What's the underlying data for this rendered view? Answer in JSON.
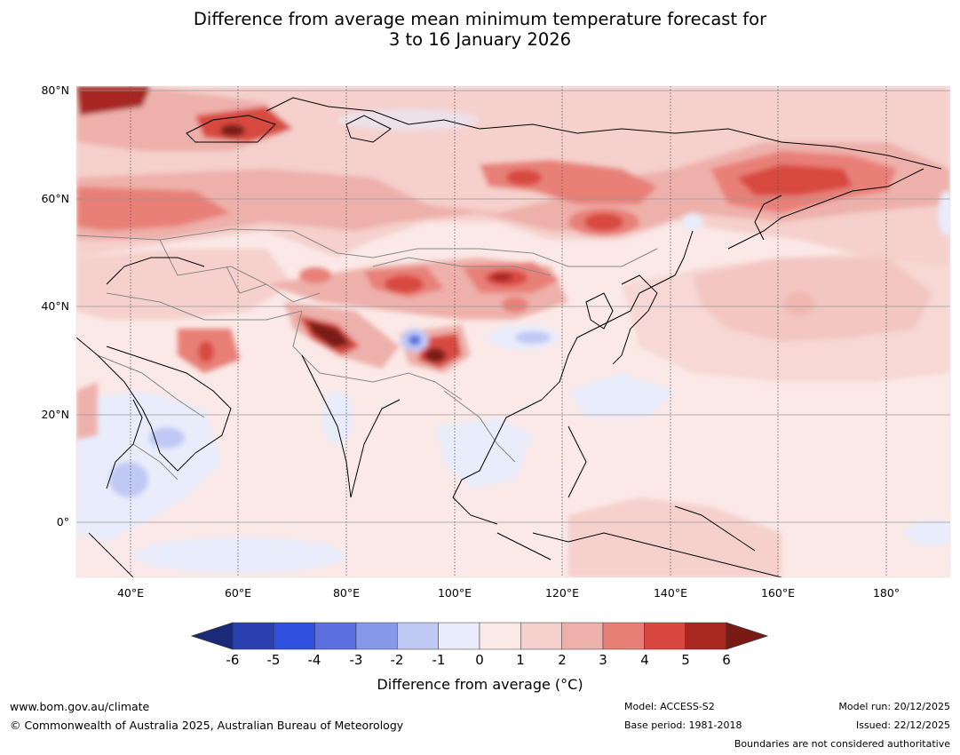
{
  "title": {
    "line1": "Difference from average mean minimum temperature forecast for",
    "line2": "3 to 16 January 2026"
  },
  "map": {
    "lat_labels": [
      "80°N",
      "60°N",
      "40°N",
      "20°N",
      "0°"
    ],
    "lon_labels": [
      "40°E",
      "60°E",
      "80°E",
      "100°E",
      "120°E",
      "140°E",
      "160°E",
      "180°"
    ],
    "background_color": "#fbe9e7"
  },
  "colorbar": {
    "ticks": [
      "-6",
      "-5",
      "-4",
      "-3",
      "-2",
      "-1",
      "0",
      "1",
      "2",
      "3",
      "4",
      "5",
      "6"
    ],
    "colors": [
      "#1a2a78",
      "#2a40b0",
      "#3050e0",
      "#5a70e0",
      "#8898e8",
      "#c0c8f4",
      "#e8ecfb",
      "#fbe9e7",
      "#f5d0cc",
      "#eeb0aa",
      "#e88078",
      "#d84840",
      "#a82820",
      "#7a1a14"
    ],
    "label": "Difference from average (°C)"
  },
  "footer": {
    "url": "www.bom.gov.au/climate",
    "copyright": "© Commonwealth of Australia 2025, Australian Bureau of Meteorology",
    "model": "Model: ACCESS-S2",
    "base_period": "Base period: 1981-2018",
    "model_run": "Model run: 20/12/2025",
    "issued": "Issued: 22/12/2025",
    "boundaries": "Boundaries are not considered authoritative"
  }
}
